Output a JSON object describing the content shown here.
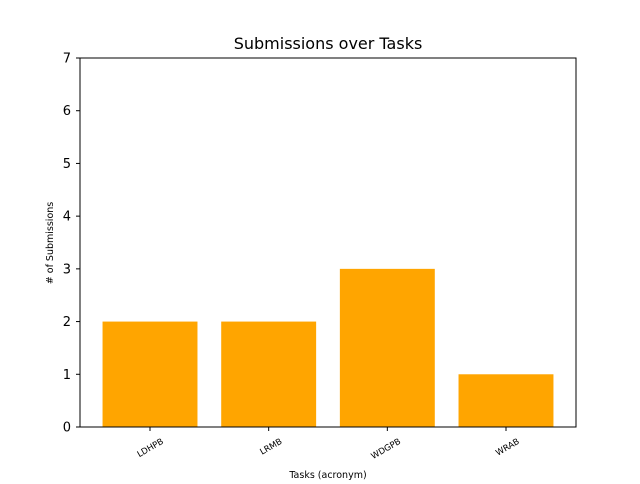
{
  "chart_data": {
    "type": "bar",
    "title": "Submissions over Tasks",
    "xlabel": "Tasks (acronym)",
    "ylabel": "# of Submissions",
    "categories": [
      "LDHPB",
      "LRMB",
      "WDGPB",
      "WRAB"
    ],
    "values": [
      2,
      2,
      3,
      1
    ],
    "ylim": [
      0,
      7
    ],
    "yticks": [
      "0",
      "1",
      "2",
      "3",
      "4",
      "5",
      "6",
      "7"
    ],
    "grid": false,
    "bar_color": "#FFA500",
    "x_tick_rotation": "30deg"
  }
}
